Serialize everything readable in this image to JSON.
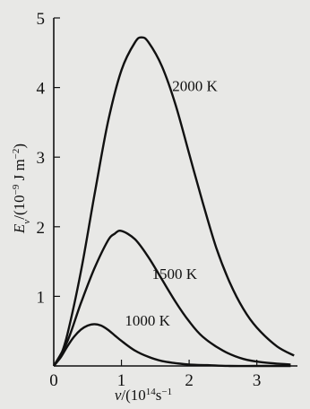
{
  "chart_data": {
    "type": "line",
    "title": "",
    "xlabel": {
      "var": "ν",
      "sep": "/(",
      "unit": "10",
      "exp": "14",
      "tail": "s",
      "tail_exp": "−1"
    },
    "ylabel": {
      "var": "E",
      "sub": "ν",
      "sep": "/(",
      "unit": "10",
      "exp": "−9",
      "mid": " J m",
      "mid_exp": "−2",
      "close": ")"
    },
    "xlim": [
      0,
      3.6
    ],
    "ylim": [
      0,
      5
    ],
    "xticks": [
      0,
      1,
      2,
      3
    ],
    "xtick_labels": [
      "0",
      "1",
      "2",
      "3"
    ],
    "yticks": [
      0,
      1,
      2,
      3,
      4,
      5
    ],
    "ytick_labels": [
      "0",
      "1",
      "2",
      "3",
      "4",
      "5"
    ],
    "grid": false,
    "legend": "inline labels",
    "series": [
      {
        "name": "1000 K",
        "x": [
          0,
          0.1,
          0.2,
          0.3,
          0.4,
          0.5,
          0.6,
          0.7,
          0.8,
          0.9,
          1.0,
          1.2,
          1.4,
          1.6,
          1.8,
          2.0,
          2.3,
          2.6,
          3.0,
          3.5
        ],
        "y": [
          0,
          0.12,
          0.28,
          0.42,
          0.52,
          0.58,
          0.6,
          0.58,
          0.52,
          0.44,
          0.36,
          0.22,
          0.13,
          0.07,
          0.04,
          0.02,
          0.01,
          0.0,
          0.0,
          0.0
        ]
      },
      {
        "name": "1500 K",
        "x": [
          0,
          0.2,
          0.4,
          0.6,
          0.8,
          0.9,
          1.0,
          1.2,
          1.4,
          1.6,
          1.8,
          2.0,
          2.2,
          2.5,
          2.8,
          3.1,
          3.5
        ],
        "y": [
          0,
          0.35,
          0.9,
          1.4,
          1.8,
          1.9,
          1.94,
          1.82,
          1.56,
          1.24,
          0.92,
          0.64,
          0.42,
          0.22,
          0.1,
          0.05,
          0.02
        ]
      },
      {
        "name": "2000 K",
        "x": [
          0,
          0.1,
          0.2,
          0.4,
          0.6,
          0.8,
          1.0,
          1.2,
          1.3,
          1.4,
          1.6,
          1.8,
          2.0,
          2.2,
          2.4,
          2.6,
          2.8,
          3.0,
          3.3,
          3.55
        ],
        "y": [
          0,
          0.15,
          0.45,
          1.35,
          2.45,
          3.5,
          4.25,
          4.65,
          4.72,
          4.65,
          4.3,
          3.75,
          3.05,
          2.35,
          1.7,
          1.2,
          0.82,
          0.55,
          0.28,
          0.15
        ]
      }
    ]
  }
}
